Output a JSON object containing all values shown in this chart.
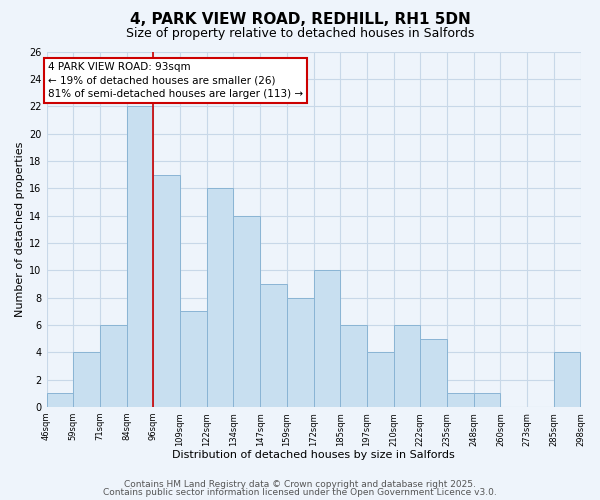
{
  "title": "4, PARK VIEW ROAD, REDHILL, RH1 5DN",
  "subtitle": "Size of property relative to detached houses in Salfords",
  "xlabel": "Distribution of detached houses by size in Salfords",
  "ylabel": "Number of detached properties",
  "bar_color": "#c8dff0",
  "bar_edge_color": "#8ab4d4",
  "bar_heights": [
    1,
    4,
    6,
    22,
    17,
    7,
    16,
    14,
    9,
    8,
    10,
    6,
    4,
    6,
    5,
    1,
    1,
    0,
    0,
    4
  ],
  "bin_left_edges": [
    0,
    1,
    2,
    3,
    4,
    5,
    6,
    7,
    8,
    9,
    10,
    11,
    12,
    13,
    14,
    15,
    16,
    17,
    18,
    19
  ],
  "xtick_positions": [
    0,
    1,
    2,
    3,
    4,
    5,
    6,
    7,
    8,
    9,
    10,
    11,
    12,
    13,
    14,
    15,
    16,
    17,
    18,
    19,
    20
  ],
  "xtick_labels": [
    "46sqm",
    "59sqm",
    "71sqm",
    "84sqm",
    "96sqm",
    "109sqm",
    "122sqm",
    "134sqm",
    "147sqm",
    "159sqm",
    "172sqm",
    "185sqm",
    "197sqm",
    "210sqm",
    "222sqm",
    "235sqm",
    "248sqm",
    "260sqm",
    "273sqm",
    "285sqm",
    "298sqm"
  ],
  "ylim": [
    0,
    26
  ],
  "yticks": [
    0,
    2,
    4,
    6,
    8,
    10,
    12,
    14,
    16,
    18,
    20,
    22,
    24,
    26
  ],
  "property_line_x": 4,
  "property_line_color": "#cc0000",
  "annotation_text": "4 PARK VIEW ROAD: 93sqm\n← 19% of detached houses are smaller (26)\n81% of semi-detached houses are larger (113) →",
  "annotation_box_color": "#ffffff",
  "annotation_box_edge_color": "#cc0000",
  "footer_line1": "Contains HM Land Registry data © Crown copyright and database right 2025.",
  "footer_line2": "Contains public sector information licensed under the Open Government Licence v3.0.",
  "background_color": "#eef4fb",
  "grid_color": "#c8d8e8",
  "title_fontsize": 11,
  "subtitle_fontsize": 9,
  "annotation_fontsize": 7.5,
  "footer_fontsize": 6.5,
  "ylabel_fontsize": 8,
  "xlabel_fontsize": 8
}
